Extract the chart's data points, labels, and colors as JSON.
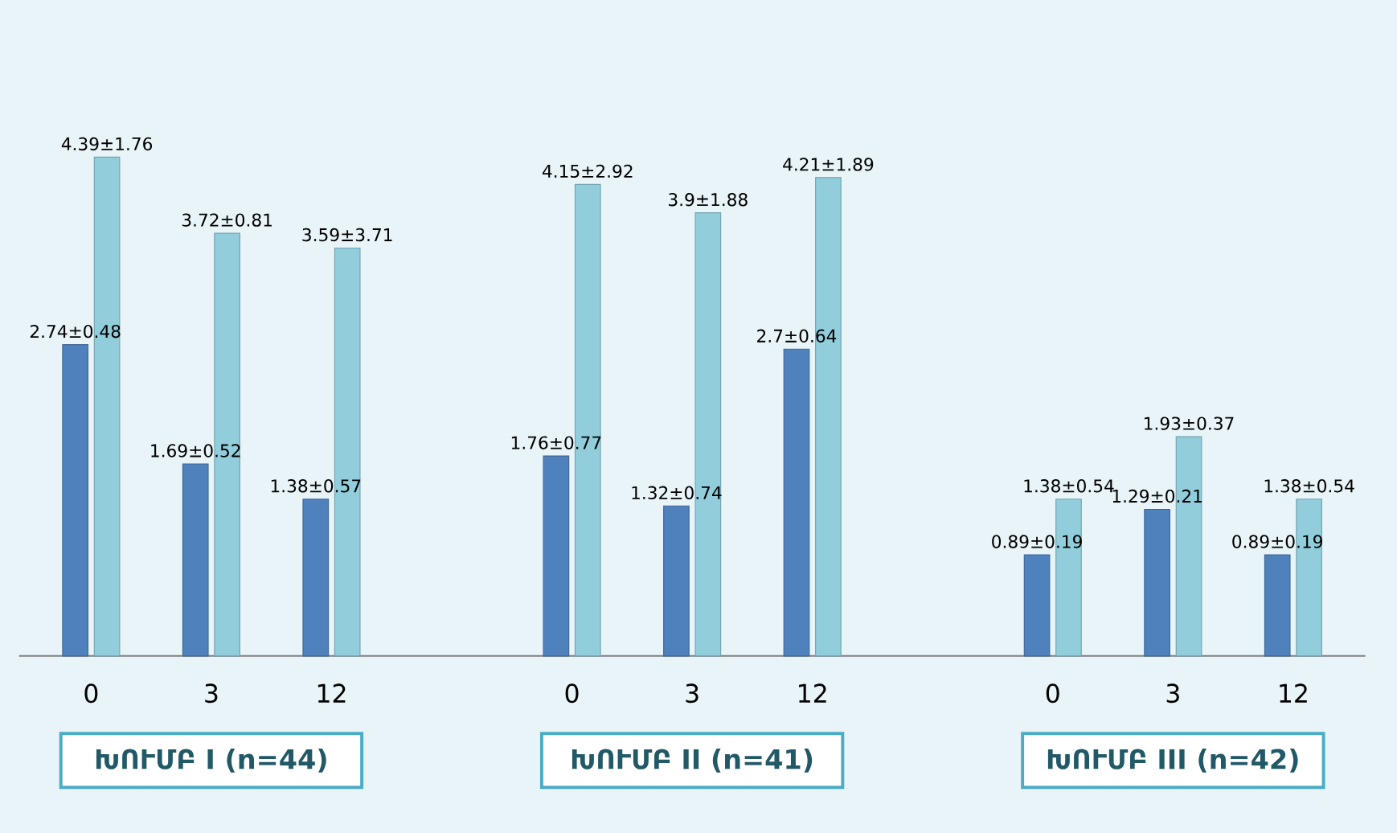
{
  "chart_data": {
    "type": "bar",
    "categories": [
      "0",
      "3",
      "12",
      null,
      "0",
      "3",
      "12",
      null,
      "0",
      "3",
      "12"
    ],
    "series": [
      {
        "color": "#4f81bd",
        "values": [
          2.74,
          1.69,
          1.38,
          null,
          1.76,
          1.32,
          2.7,
          null,
          0.89,
          1.29,
          0.89
        ],
        "value_labels": [
          "2.74±0.48",
          "1.69±0.52",
          "1.38±0.57",
          null,
          "1.76±0.77",
          "1.32±0.74",
          "2.7±0.64",
          null,
          "0.89±0.19",
          "1.29±0.21",
          "0.89±0.19"
        ]
      },
      {
        "color": "#92cddc",
        "values": [
          4.39,
          3.72,
          3.59,
          null,
          4.15,
          3.9,
          4.21,
          null,
          1.38,
          1.93,
          1.38
        ],
        "value_labels": [
          "4.39±1.76",
          "3.72±0.81",
          "3.59±3.71",
          null,
          "4.15±2.92",
          "3.9±1.88",
          "4.21±1.89",
          null,
          "1.38±0.54",
          "1.93±0.37",
          "1.38±0.54"
        ]
      }
    ],
    "annotations": [
      "ԽՈՒՄԲ I (n=44)",
      "ԽՈՒՄԲ II (n=41)",
      "ԽՈՒՄԲ III (n=42)"
    ]
  }
}
